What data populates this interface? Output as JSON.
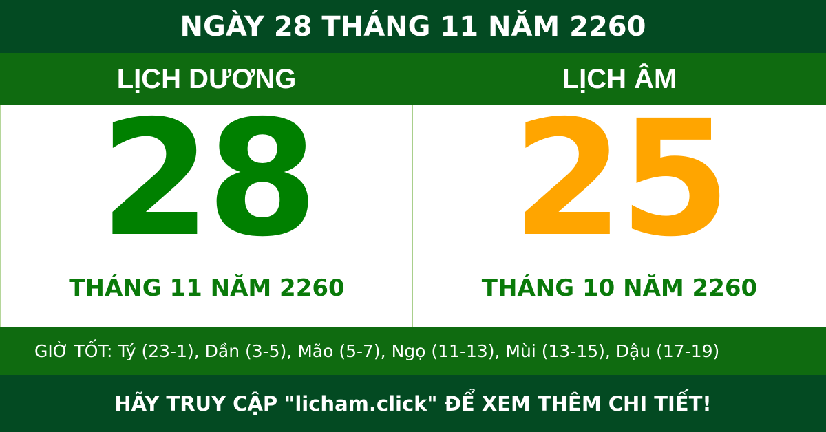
{
  "title": "NGÀY 28 THÁNG 11 NĂM 2260",
  "solar": {
    "heading": "LỊCH DƯƠNG",
    "day": "28",
    "month_year": "THÁNG 11 NĂM 2260",
    "color": "#008000"
  },
  "lunar": {
    "heading": "LỊCH ÂM",
    "day": "25",
    "month_year": "THÁNG 10 NĂM 2260",
    "color": "#ffa500"
  },
  "good_hours": "GIỜ TỐT: Tý (23-1), Dần (3-5), Mão (5-7), Ngọ (11-13), Mùi (13-15), Dậu (17-19)",
  "footer": "HÃY TRUY CẬP \"licham.click\" ĐỂ XEM THÊM CHI TIẾT!",
  "colors": {
    "dark_green": "#034a22",
    "green": "#0f6b10"
  }
}
